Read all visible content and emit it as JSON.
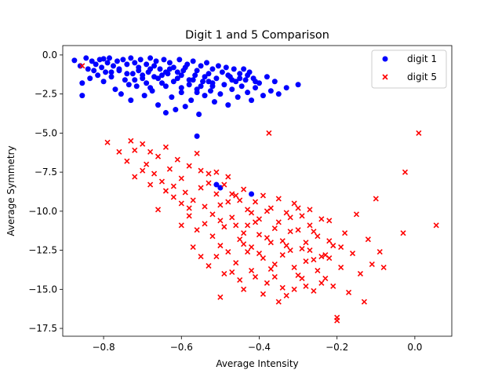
{
  "chart_data": {
    "type": "scatter",
    "title": "Digit 1 and 5 Comparison",
    "xlabel": "Average Intensity",
    "ylabel": "Average Symmetry",
    "xlim": [
      -0.905,
      0.095
    ],
    "ylim": [
      -18.0,
      0.6
    ],
    "xticks": [
      -0.8,
      -0.6,
      -0.4,
      -0.2,
      0.0
    ],
    "xtick_labels": [
      "−0.8",
      "−0.6",
      "−0.4",
      "−0.2",
      "0.0"
    ],
    "yticks": [
      0.0,
      -2.5,
      -5.0,
      -7.5,
      -10.0,
      -12.5,
      -15.0,
      -17.5
    ],
    "ytick_labels": [
      "0.0",
      "−2.5",
      "−5.0",
      "−7.5",
      "−10.0",
      "−12.5",
      "−15.0",
      "−17.5"
    ],
    "grid": false,
    "legend_position": "top-right",
    "series": [
      {
        "name": "digit 1",
        "marker": "circle",
        "color": "#0000ff",
        "points": [
          [
            -0.875,
            -0.35
          ],
          [
            -0.86,
            -0.7
          ],
          [
            -0.855,
            -1.8
          ],
          [
            -0.855,
            -2.6
          ],
          [
            -0.845,
            -0.2
          ],
          [
            -0.84,
            -0.9
          ],
          [
            -0.835,
            -1.5
          ],
          [
            -0.83,
            -0.4
          ],
          [
            -0.825,
            -1.0
          ],
          [
            -0.82,
            -0.6
          ],
          [
            -0.815,
            -1.3
          ],
          [
            -0.81,
            -0.3
          ],
          [
            -0.805,
            -0.8
          ],
          [
            -0.8,
            -1.7
          ],
          [
            -0.8,
            -0.25
          ],
          [
            -0.795,
            -1.1
          ],
          [
            -0.79,
            -0.5
          ],
          [
            -0.785,
            -0.2
          ],
          [
            -0.78,
            -1.4
          ],
          [
            -0.775,
            -0.7
          ],
          [
            -0.77,
            -2.2
          ],
          [
            -0.765,
            -0.4
          ],
          [
            -0.76,
            -1.0
          ],
          [
            -0.755,
            -2.5
          ],
          [
            -0.75,
            -0.3
          ],
          [
            -0.745,
            -1.6
          ],
          [
            -0.74,
            -0.6
          ],
          [
            -0.735,
            -1.9
          ],
          [
            -0.73,
            -0.2
          ],
          [
            -0.73,
            -2.9
          ],
          [
            -0.725,
            -1.2
          ],
          [
            -0.72,
            -0.5
          ],
          [
            -0.715,
            -2.0
          ],
          [
            -0.71,
            -0.8
          ],
          [
            -0.705,
            -0.3
          ],
          [
            -0.7,
            -1.5
          ],
          [
            -0.695,
            -2.6
          ],
          [
            -0.69,
            -0.6
          ],
          [
            -0.685,
            -1.1
          ],
          [
            -0.68,
            -0.2
          ],
          [
            -0.675,
            -2.3
          ],
          [
            -0.67,
            -1.4
          ],
          [
            -0.665,
            -0.4
          ],
          [
            -0.66,
            -3.2
          ],
          [
            -0.655,
            -0.9
          ],
          [
            -0.65,
            -1.8
          ],
          [
            -0.645,
            -0.3
          ],
          [
            -0.64,
            -3.7
          ],
          [
            -0.635,
            -1.2
          ],
          [
            -0.63,
            -0.5
          ],
          [
            -0.625,
            -2.7
          ],
          [
            -0.62,
            -0.8
          ],
          [
            -0.615,
            -3.5
          ],
          [
            -0.61,
            -1.5
          ],
          [
            -0.605,
            -0.3
          ],
          [
            -0.6,
            -2.4
          ],
          [
            -0.595,
            -1.0
          ],
          [
            -0.59,
            -3.3
          ],
          [
            -0.585,
            -0.6
          ],
          [
            -0.58,
            -1.9
          ],
          [
            -0.575,
            -2.9
          ],
          [
            -0.57,
            -0.4
          ],
          [
            -0.565,
            -1.3
          ],
          [
            -0.56,
            -2.2
          ],
          [
            -0.555,
            -3.8
          ],
          [
            -0.55,
            -0.7
          ],
          [
            -0.545,
            -1.7
          ],
          [
            -0.54,
            -2.6
          ],
          [
            -0.535,
            -0.5
          ],
          [
            -0.53,
            -1.2
          ],
          [
            -0.525,
            -2.3
          ],
          [
            -0.52,
            -0.9
          ],
          [
            -0.515,
            -3.0
          ],
          [
            -0.51,
            -1.5
          ],
          [
            -0.505,
            -0.7
          ],
          [
            -0.5,
            -2.5
          ],
          [
            -0.495,
            -1.1
          ],
          [
            -0.49,
            -1.9
          ],
          [
            -0.485,
            -0.8
          ],
          [
            -0.48,
            -3.2
          ],
          [
            -0.475,
            -1.4
          ],
          [
            -0.47,
            -2.2
          ],
          [
            -0.465,
            -0.9
          ],
          [
            -0.46,
            -1.7
          ],
          [
            -0.455,
            -2.7
          ],
          [
            -0.45,
            -1.2
          ],
          [
            -0.445,
            -2.0
          ],
          [
            -0.44,
            -0.9
          ],
          [
            -0.435,
            -1.6
          ],
          [
            -0.43,
            -2.4
          ],
          [
            -0.425,
            -1.1
          ],
          [
            -0.42,
            -2.9
          ],
          [
            -0.415,
            -1.5
          ],
          [
            -0.41,
            -2.1
          ],
          [
            -0.4,
            -1.8
          ],
          [
            -0.39,
            -2.6
          ],
          [
            -0.38,
            -1.4
          ],
          [
            -0.37,
            -2.3
          ],
          [
            -0.36,
            -1.7
          ],
          [
            -0.35,
            -2.5
          ],
          [
            -0.33,
            -2.1
          ],
          [
            -0.3,
            -1.9
          ],
          [
            -0.56,
            -5.2
          ],
          [
            -0.5,
            -8.5
          ],
          [
            -0.42,
            -8.9
          ],
          [
            -0.51,
            -8.3
          ],
          [
            -0.7,
            -1.3
          ],
          [
            -0.68,
            -0.9
          ],
          [
            -0.66,
            -1.5
          ],
          [
            -0.64,
            -1.1
          ],
          [
            -0.62,
            -1.7
          ],
          [
            -0.6,
            -1.3
          ],
          [
            -0.58,
            -1.6
          ],
          [
            -0.56,
            -1.0
          ],
          [
            -0.54,
            -1.4
          ],
          [
            -0.52,
            -1.8
          ],
          [
            -0.74,
            -1.2
          ],
          [
            -0.76,
            -0.9
          ],
          [
            -0.78,
            -1.1
          ],
          [
            -0.72,
            -1.6
          ],
          [
            -0.71,
            -1.0
          ],
          [
            -0.69,
            -1.8
          ],
          [
            -0.67,
            -0.7
          ],
          [
            -0.65,
            -1.3
          ],
          [
            -0.63,
            -0.9
          ],
          [
            -0.61,
            -1.1
          ],
          [
            -0.59,
            -0.8
          ],
          [
            -0.57,
            -1.6
          ],
          [
            -0.55,
            -2.0
          ],
          [
            -0.53,
            -1.7
          ],
          [
            -0.47,
            -1.6
          ],
          [
            -0.45,
            -1.5
          ],
          [
            -0.43,
            -1.3
          ],
          [
            -0.41,
            -1.7
          ],
          [
            -0.68,
            -2.1
          ],
          [
            -0.64,
            -2.0
          ],
          [
            -0.6,
            -2.1
          ],
          [
            -0.56,
            -2.4
          ],
          [
            -0.52,
            -2.0
          ],
          [
            -0.48,
            -1.3
          ]
        ]
      },
      {
        "name": "digit 5",
        "marker": "x",
        "color": "#ff0000",
        "points": [
          [
            -0.855,
            -0.7
          ],
          [
            -0.79,
            -5.6
          ],
          [
            -0.73,
            -5.5
          ],
          [
            -0.72,
            -6.1
          ],
          [
            -0.7,
            -5.7
          ],
          [
            -0.68,
            -6.2
          ],
          [
            -0.69,
            -7.0
          ],
          [
            -0.67,
            -7.6
          ],
          [
            -0.66,
            -6.5
          ],
          [
            -0.65,
            -8.1
          ],
          [
            -0.64,
            -5.9
          ],
          [
            -0.63,
            -7.3
          ],
          [
            -0.62,
            -8.4
          ],
          [
            -0.61,
            -6.7
          ],
          [
            -0.6,
            -7.9
          ],
          [
            -0.59,
            -8.8
          ],
          [
            -0.58,
            -7.1
          ],
          [
            -0.57,
            -9.3
          ],
          [
            -0.56,
            -6.3
          ],
          [
            -0.55,
            -8.5
          ],
          [
            -0.54,
            -9.7
          ],
          [
            -0.53,
            -7.6
          ],
          [
            -0.52,
            -10.2
          ],
          [
            -0.51,
            -8.9
          ],
          [
            -0.5,
            -9.6
          ],
          [
            -0.49,
            -11.0
          ],
          [
            -0.48,
            -7.8
          ],
          [
            -0.47,
            -10.4
          ],
          [
            -0.46,
            -9.0
          ],
          [
            -0.45,
            -11.8
          ],
          [
            -0.44,
            -8.6
          ],
          [
            -0.43,
            -10.9
          ],
          [
            -0.42,
            -12.3
          ],
          [
            -0.41,
            -9.4
          ],
          [
            -0.4,
            -11.5
          ],
          [
            -0.39,
            -13.0
          ],
          [
            -0.38,
            -10.0
          ],
          [
            -0.37,
            -12.0
          ],
          [
            -0.36,
            -14.2
          ],
          [
            -0.35,
            -10.7
          ],
          [
            -0.34,
            -12.8
          ],
          [
            -0.33,
            -15.4
          ],
          [
            -0.32,
            -11.3
          ],
          [
            -0.31,
            -13.6
          ],
          [
            -0.3,
            -9.8
          ],
          [
            -0.29,
            -12.4
          ],
          [
            -0.28,
            -14.8
          ],
          [
            -0.27,
            -10.9
          ],
          [
            -0.26,
            -13.1
          ],
          [
            -0.25,
            -11.6
          ],
          [
            -0.24,
            -12.9
          ],
          [
            -0.23,
            -14.3
          ],
          [
            -0.22,
            -10.6
          ],
          [
            -0.21,
            -12.2
          ],
          [
            -0.2,
            -16.8
          ],
          [
            -0.19,
            -13.6
          ],
          [
            -0.18,
            -11.4
          ],
          [
            -0.17,
            -15.2
          ],
          [
            -0.16,
            -12.7
          ],
          [
            -0.15,
            -10.2
          ],
          [
            -0.14,
            -14.0
          ],
          [
            -0.13,
            -15.8
          ],
          [
            -0.12,
            -11.8
          ],
          [
            -0.11,
            -13.4
          ],
          [
            -0.1,
            -9.2
          ],
          [
            -0.09,
            -12.6
          ],
          [
            -0.08,
            -13.6
          ],
          [
            -0.03,
            -11.4
          ],
          [
            -0.025,
            -7.5
          ],
          [
            0.01,
            -5.0
          ],
          [
            0.055,
            -10.9
          ],
          [
            -0.375,
            -5.0
          ],
          [
            -0.2,
            -17.0
          ],
          [
            -0.5,
            -15.5
          ],
          [
            -0.44,
            -15.0
          ],
          [
            -0.6,
            -9.5
          ],
          [
            -0.58,
            -10.3
          ],
          [
            -0.56,
            -11.2
          ],
          [
            -0.54,
            -10.8
          ],
          [
            -0.52,
            -11.6
          ],
          [
            -0.5,
            -12.2
          ],
          [
            -0.48,
            -12.6
          ],
          [
            -0.46,
            -13.3
          ],
          [
            -0.44,
            -12.1
          ],
          [
            -0.42,
            -13.8
          ],
          [
            -0.4,
            -12.7
          ],
          [
            -0.38,
            -14.6
          ],
          [
            -0.36,
            -13.4
          ],
          [
            -0.34,
            -14.9
          ],
          [
            -0.32,
            -12.5
          ],
          [
            -0.3,
            -14.1
          ],
          [
            -0.28,
            -13.2
          ],
          [
            -0.26,
            -15.1
          ],
          [
            -0.24,
            -14.6
          ],
          [
            -0.22,
            -13.0
          ],
          [
            -0.62,
            -9.1
          ],
          [
            -0.64,
            -8.7
          ],
          [
            -0.66,
            -9.9
          ],
          [
            -0.68,
            -8.3
          ],
          [
            -0.7,
            -7.4
          ],
          [
            -0.72,
            -7.8
          ],
          [
            -0.74,
            -6.8
          ],
          [
            -0.76,
            -6.2
          ],
          [
            -0.6,
            -10.9
          ],
          [
            -0.58,
            -9.8
          ],
          [
            -0.5,
            -10.6
          ],
          [
            -0.48,
            -9.4
          ],
          [
            -0.46,
            -10.9
          ],
          [
            -0.44,
            -11.4
          ],
          [
            -0.42,
            -10.1
          ],
          [
            -0.4,
            -10.5
          ],
          [
            -0.38,
            -11.7
          ],
          [
            -0.36,
            -11.1
          ],
          [
            -0.34,
            -11.9
          ],
          [
            -0.32,
            -10.4
          ],
          [
            -0.3,
            -11.2
          ],
          [
            -0.28,
            -12.0
          ],
          [
            -0.26,
            -11.3
          ],
          [
            -0.24,
            -10.5
          ],
          [
            -0.22,
            -11.9
          ],
          [
            -0.55,
            -7.4
          ],
          [
            -0.53,
            -8.2
          ],
          [
            -0.51,
            -7.5
          ],
          [
            -0.49,
            -8.3
          ],
          [
            -0.47,
            -8.9
          ],
          [
            -0.45,
            -9.3
          ],
          [
            -0.43,
            -9.9
          ],
          [
            -0.41,
            -10.7
          ],
          [
            -0.39,
            -9.0
          ],
          [
            -0.37,
            -9.8
          ],
          [
            -0.35,
            -9.2
          ],
          [
            -0.33,
            -10.1
          ],
          [
            -0.31,
            -9.5
          ],
          [
            -0.29,
            -10.3
          ],
          [
            -0.27,
            -9.9
          ],
          [
            -0.57,
            -12.3
          ],
          [
            -0.55,
            -12.9
          ],
          [
            -0.53,
            -13.5
          ],
          [
            -0.51,
            -12.9
          ],
          [
            -0.49,
            -14.0
          ],
          [
            -0.47,
            -13.9
          ],
          [
            -0.45,
            -14.4
          ],
          [
            -0.43,
            -12.6
          ],
          [
            -0.41,
            -14.2
          ],
          [
            -0.39,
            -15.3
          ],
          [
            -0.37,
            -13.7
          ],
          [
            -0.35,
            -15.8
          ],
          [
            -0.33,
            -12.2
          ],
          [
            -0.31,
            -15.0
          ],
          [
            -0.29,
            -14.3
          ],
          [
            -0.27,
            -12.5
          ],
          [
            -0.25,
            -13.8
          ],
          [
            -0.23,
            -12.8
          ],
          [
            -0.21,
            -14.8
          ],
          [
            -0.19,
            -12.3
          ]
        ]
      }
    ]
  }
}
